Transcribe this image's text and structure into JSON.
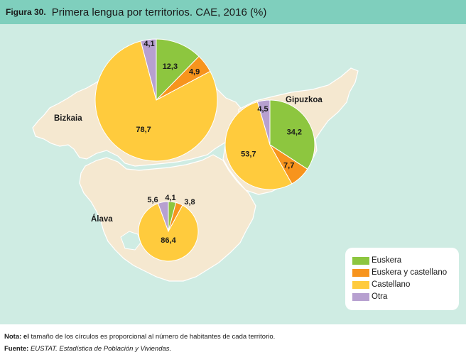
{
  "header": {
    "figure_number": "Figura 30.",
    "title": "Primera lengua por territorios. CAE, 2016 (%)"
  },
  "colors": {
    "header_bg": "#7fcfbd",
    "panel_bg": "#cfece3",
    "map_fill": "#f5e8d0",
    "map_stroke": "#ffffff",
    "Euskera": "#8dc63f",
    "Euskera y castellano": "#f7941d",
    "Castellano": "#ffcb3d",
    "Otra": "#b7a0d0"
  },
  "chart_data": {
    "type": "pie",
    "title": "Primera lengua por territorios. CAE, 2016 (%)",
    "categories": [
      "Euskera",
      "Euskera y castellano",
      "Castellano",
      "Otra"
    ],
    "pies": [
      {
        "name": "Bizkaia",
        "values": [
          12.3,
          4.9,
          78.7,
          4.1
        ],
        "labels": [
          "12,3",
          "4,9",
          "78,7",
          "4,1"
        ]
      },
      {
        "name": "Gipuzkoa",
        "values": [
          34.2,
          7.7,
          53.7,
          4.5
        ],
        "labels": [
          "34,2",
          "7,7",
          "53,7",
          "4,5"
        ]
      },
      {
        "name": "Álava",
        "values": [
          4.1,
          3.8,
          86.4,
          5.6
        ],
        "labels": [
          "4,1",
          "3,8",
          "86,4",
          "5,6"
        ]
      }
    ],
    "legend_position": "bottom-right"
  },
  "territories": [
    "Bizkaia",
    "Gipuzkoa",
    "Álava"
  ],
  "footer": {
    "note_label": "Nota:",
    "note_bold": "el",
    "note_text": " tamaño de los círculos es proporcional al número de habitantes de cada territorio.",
    "source_label": "Fuente:",
    "source_text": "EUSTAT. Estadística de Población y Viviendas."
  }
}
